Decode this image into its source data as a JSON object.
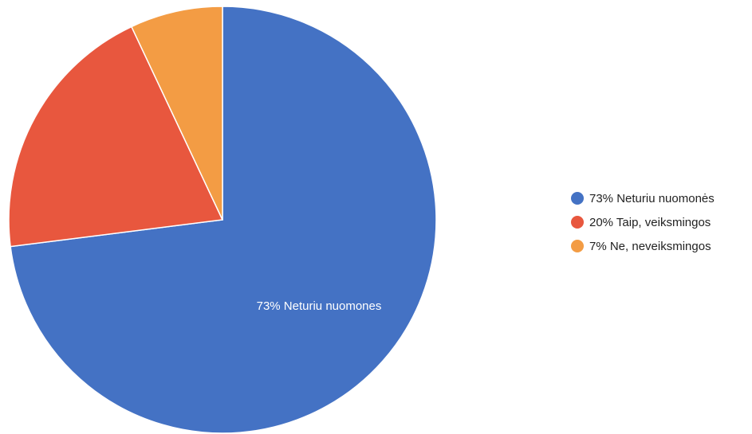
{
  "chart_data": {
    "type": "pie",
    "slices": [
      {
        "label": "Neturiu nuomonės",
        "value": 73,
        "color": "#4472c4"
      },
      {
        "label": "Taip, veiksmingos",
        "value": 20,
        "color": "#e8573e"
      },
      {
        "label": "Ne, neveiksmingos",
        "value": 7,
        "color": "#f39c44"
      }
    ],
    "legend": {
      "placement": "right",
      "items": [
        "73% Neturiu nuomonės",
        "20% Taip, veiksmingos",
        "7% Ne, neveiksmingos"
      ]
    },
    "slice_labels": [
      "73% Neturiu nuomones"
    ]
  }
}
